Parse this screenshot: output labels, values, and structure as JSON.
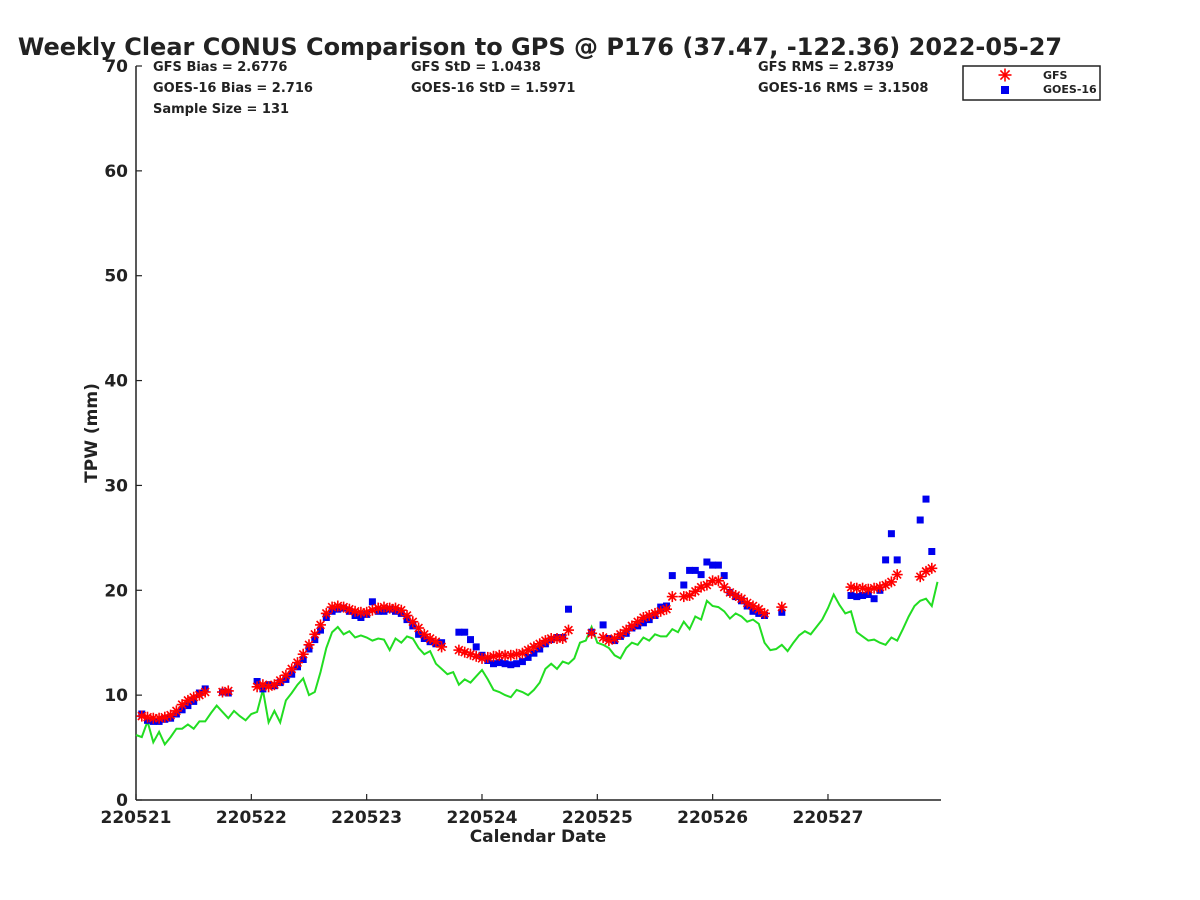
{
  "chart_data": {
    "type": "scatter",
    "title": "Weekly Clear CONUS Comparison to GPS @ P176 (37.47, -122.36) 2022-05-27",
    "xlabel": "Calendar Date",
    "ylabel": "TPW (mm)",
    "ylim": [
      0,
      70
    ],
    "xlim": [
      220521,
      220527.98
    ],
    "yticks": [
      "0",
      "10",
      "20",
      "30",
      "40",
      "50",
      "60",
      "70"
    ],
    "xticks": [
      "220521",
      "220522",
      "220523",
      "220524",
      "220525",
      "220526",
      "220527"
    ],
    "grid": false,
    "legend": {
      "position": "top-right",
      "entries": [
        "GFS",
        "GOES-16"
      ]
    },
    "stats": {
      "gfs_bias": "GFS Bias = 2.6776",
      "goes_bias": "GOES-16 Bias = 2.716",
      "sample_size": "Sample Size = 131",
      "gfs_std": "GFS StD = 1.0438",
      "goes_std": "GOES-16 StD = 1.5971",
      "gfs_rms": "GFS RMS = 2.8739",
      "goes_rms": "GOES-16 RMS = 3.1508"
    },
    "colors": {
      "gfs": "#ff0000",
      "goes": "#0000ee",
      "gps": "#22dd22"
    },
    "series": [
      {
        "name": "GFS",
        "marker": "asterisk",
        "x": [
          220521.05,
          220521.1,
          220521.15,
          220521.2,
          220521.25,
          220521.3,
          220521.35,
          220521.4,
          220521.45,
          220521.5,
          220521.55,
          220521.6,
          220521.75,
          220521.8,
          220522.05,
          220522.1,
          220522.15,
          220522.2,
          220522.25,
          220522.3,
          220522.35,
          220522.4,
          220522.45,
          220522.5,
          220522.55,
          220522.6,
          220522.65,
          220522.7,
          220522.75,
          220522.8,
          220522.85,
          220522.9,
          220522.95,
          220523.0,
          220523.05,
          220523.1,
          220523.15,
          220523.2,
          220523.25,
          220523.3,
          220523.35,
          220523.4,
          220523.45,
          220523.5,
          220523.55,
          220523.6,
          220523.65,
          220523.8,
          220523.85,
          220523.9,
          220523.95,
          220524.0,
          220524.05,
          220524.1,
          220524.15,
          220524.2,
          220524.25,
          220524.3,
          220524.35,
          220524.4,
          220524.45,
          220524.5,
          220524.55,
          220524.6,
          220524.65,
          220524.7,
          220524.75,
          220524.95,
          220525.05,
          220525.1,
          220525.15,
          220525.2,
          220525.25,
          220525.3,
          220525.35,
          220525.4,
          220525.45,
          220525.5,
          220525.55,
          220525.6,
          220525.65,
          220525.75,
          220525.8,
          220525.85,
          220525.9,
          220525.95,
          220526.0,
          220526.05,
          220526.1,
          220526.15,
          220526.2,
          220526.25,
          220526.3,
          220526.35,
          220526.4,
          220526.45,
          220526.6,
          220527.2,
          220527.25,
          220527.3,
          220527.35,
          220527.4,
          220527.45,
          220527.5,
          220527.55,
          220527.6,
          220527.8,
          220527.85,
          220527.9
        ],
        "y": [
          8.0,
          7.9,
          7.8,
          7.8,
          7.9,
          8.1,
          8.5,
          9.1,
          9.5,
          9.8,
          10.0,
          10.3,
          10.3,
          10.4,
          10.8,
          11.0,
          10.8,
          11.0,
          11.4,
          11.9,
          12.5,
          13.1,
          13.9,
          14.8,
          15.8,
          16.7,
          17.8,
          18.4,
          18.5,
          18.4,
          18.2,
          18.0,
          17.9,
          17.9,
          18.1,
          18.3,
          18.4,
          18.3,
          18.3,
          18.1,
          17.6,
          17.0,
          16.4,
          15.8,
          15.4,
          15.1,
          14.6,
          14.3,
          14.1,
          13.9,
          13.7,
          13.5,
          13.6,
          13.7,
          13.8,
          13.8,
          13.8,
          13.9,
          14.0,
          14.3,
          14.6,
          14.9,
          15.2,
          15.4,
          15.4,
          15.4,
          16.2,
          15.9,
          15.5,
          15.2,
          15.4,
          15.8,
          16.2,
          16.6,
          17.0,
          17.4,
          17.6,
          17.8,
          18.0,
          18.2,
          19.4,
          19.4,
          19.5,
          19.9,
          20.3,
          20.5,
          20.9,
          20.9,
          20.3,
          19.8,
          19.5,
          19.2,
          18.8,
          18.5,
          18.2,
          17.8,
          18.4,
          20.3,
          20.2,
          20.2,
          20.1,
          20.2,
          20.3,
          20.5,
          20.8,
          21.5,
          21.3,
          21.8,
          22.1
        ]
      },
      {
        "name": "GOES-16",
        "marker": "square",
        "x": [
          220521.05,
          220521.1,
          220521.15,
          220521.2,
          220521.25,
          220521.3,
          220521.35,
          220521.4,
          220521.45,
          220521.5,
          220521.55,
          220521.6,
          220521.75,
          220521.8,
          220522.05,
          220522.1,
          220522.15,
          220522.2,
          220522.25,
          220522.3,
          220522.35,
          220522.4,
          220522.45,
          220522.5,
          220522.55,
          220522.6,
          220522.65,
          220522.7,
          220522.75,
          220522.8,
          220522.85,
          220522.9,
          220522.95,
          220523.0,
          220523.05,
          220523.1,
          220523.15,
          220523.2,
          220523.25,
          220523.3,
          220523.35,
          220523.4,
          220523.45,
          220523.5,
          220523.55,
          220523.6,
          220523.65,
          220523.8,
          220523.85,
          220523.9,
          220523.95,
          220524.0,
          220524.05,
          220524.1,
          220524.15,
          220524.2,
          220524.25,
          220524.3,
          220524.35,
          220524.4,
          220524.45,
          220524.5,
          220524.55,
          220524.6,
          220524.65,
          220524.7,
          220524.75,
          220524.95,
          220525.05,
          220525.1,
          220525.15,
          220525.2,
          220525.25,
          220525.3,
          220525.35,
          220525.4,
          220525.45,
          220525.5,
          220525.55,
          220525.6,
          220525.65,
          220525.75,
          220525.8,
          220525.85,
          220525.9,
          220525.95,
          220526.0,
          220526.05,
          220526.1,
          220526.15,
          220526.2,
          220526.25,
          220526.3,
          220526.35,
          220526.4,
          220526.45,
          220526.6,
          220527.2,
          220527.25,
          220527.3,
          220527.35,
          220527.4,
          220527.45,
          220527.5,
          220527.55,
          220527.6,
          220527.8,
          220527.85,
          220527.9
        ],
        "y": [
          8.2,
          7.6,
          7.5,
          7.5,
          7.7,
          7.8,
          8.2,
          8.6,
          9.0,
          9.4,
          10.2,
          10.6,
          10.3,
          10.2,
          11.3,
          10.6,
          11.0,
          10.9,
          11.2,
          11.5,
          12.0,
          12.7,
          13.4,
          14.4,
          15.3,
          16.2,
          17.4,
          18.0,
          18.2,
          18.3,
          18.0,
          17.6,
          17.4,
          17.7,
          18.9,
          18.0,
          18.0,
          18.2,
          18.0,
          17.8,
          17.2,
          16.6,
          15.8,
          15.4,
          15.1,
          14.9,
          15.0,
          16.0,
          16.0,
          15.3,
          14.6,
          13.8,
          13.3,
          13.0,
          13.1,
          13.0,
          12.9,
          13.0,
          13.2,
          13.6,
          14.0,
          14.4,
          14.9,
          15.3,
          15.5,
          15.5,
          18.2,
          16.0,
          16.7,
          15.4,
          15.2,
          15.6,
          15.9,
          16.4,
          16.6,
          16.9,
          17.2,
          17.6,
          18.4,
          18.5,
          21.4,
          20.5,
          21.9,
          21.9,
          21.5,
          22.7,
          22.4,
          22.4,
          21.4,
          19.8,
          19.4,
          19.0,
          18.5,
          18.0,
          17.8,
          17.6,
          17.9,
          19.5,
          19.4,
          19.5,
          19.6,
          19.2,
          20.0,
          22.9,
          25.4,
          22.9,
          26.7,
          28.7,
          23.7
        ]
      },
      {
        "name": "GPS",
        "marker": "line",
        "x": [
          220521.0,
          220521.05,
          220521.1,
          220521.15,
          220521.2,
          220521.25,
          220521.3,
          220521.35,
          220521.4,
          220521.45,
          220521.5,
          220521.55,
          220521.6,
          220521.65,
          220521.7,
          220521.75,
          220521.8,
          220521.85,
          220521.9,
          220521.95,
          220522.0,
          220522.05,
          220522.1,
          220522.15,
          220522.2,
          220522.25,
          220522.3,
          220522.35,
          220522.4,
          220522.45,
          220522.5,
          220522.55,
          220522.6,
          220522.65,
          220522.7,
          220522.75,
          220522.8,
          220522.85,
          220522.9,
          220522.95,
          220523.0,
          220523.05,
          220523.1,
          220523.15,
          220523.2,
          220523.25,
          220523.3,
          220523.35,
          220523.4,
          220523.45,
          220523.5,
          220523.55,
          220523.6,
          220523.65,
          220523.7,
          220523.75,
          220523.8,
          220523.85,
          220523.9,
          220523.95,
          220524.0,
          220524.05,
          220524.1,
          220524.15,
          220524.2,
          220524.25,
          220524.3,
          220524.35,
          220524.4,
          220524.45,
          220524.5,
          220524.55,
          220524.6,
          220524.65,
          220524.7,
          220524.75,
          220524.8,
          220524.85,
          220524.9,
          220524.95,
          220525.0,
          220525.05,
          220525.1,
          220525.15,
          220525.2,
          220525.25,
          220525.3,
          220525.35,
          220525.4,
          220525.45,
          220525.5,
          220525.55,
          220525.6,
          220525.65,
          220525.7,
          220525.75,
          220525.8,
          220525.85,
          220525.9,
          220525.95,
          220526.0,
          220526.05,
          220526.1,
          220526.15,
          220526.2,
          220526.25,
          220526.3,
          220526.35,
          220526.4,
          220526.45,
          220526.5,
          220526.55,
          220526.6,
          220526.65,
          220526.7,
          220526.75,
          220526.8,
          220526.85,
          220526.9,
          220526.95,
          220527.0,
          220527.05,
          220527.1,
          220527.15,
          220527.2,
          220527.25,
          220527.3,
          220527.35,
          220527.4,
          220527.45,
          220527.5,
          220527.55,
          220527.6,
          220527.65,
          220527.7,
          220527.75,
          220527.8,
          220527.85,
          220527.9,
          220527.95
        ],
        "y": [
          6.2,
          6.0,
          7.5,
          5.5,
          6.5,
          5.3,
          6.0,
          6.8,
          6.8,
          7.2,
          6.8,
          7.5,
          7.5,
          8.3,
          9.0,
          8.4,
          7.8,
          8.5,
          8.0,
          7.6,
          8.2,
          8.4,
          10.5,
          7.4,
          8.5,
          7.4,
          9.5,
          10.2,
          11.0,
          11.6,
          10.0,
          10.3,
          12.2,
          14.5,
          16.0,
          16.5,
          15.8,
          16.1,
          15.5,
          15.7,
          15.5,
          15.2,
          15.4,
          15.3,
          14.3,
          15.4,
          15.0,
          15.6,
          15.4,
          14.5,
          13.9,
          14.2,
          13.0,
          12.5,
          12.0,
          12.2,
          11.0,
          11.5,
          11.2,
          11.8,
          12.4,
          11.5,
          10.5,
          10.3,
          10.0,
          9.8,
          10.5,
          10.3,
          10.0,
          10.5,
          11.2,
          12.5,
          13.0,
          12.5,
          13.2,
          13.0,
          13.5,
          15.0,
          15.2,
          16.5,
          15.0,
          14.8,
          14.5,
          13.8,
          13.5,
          14.5,
          15.0,
          14.8,
          15.5,
          15.2,
          15.8,
          15.6,
          15.6,
          16.3,
          16.0,
          17.0,
          16.3,
          17.5,
          17.2,
          19.0,
          18.5,
          18.4,
          18.0,
          17.3,
          17.8,
          17.5,
          17.0,
          17.2,
          16.8,
          15.0,
          14.3,
          14.4,
          14.8,
          14.2,
          15.0,
          15.7,
          16.1,
          15.8,
          16.5,
          17.2,
          18.3,
          19.6,
          18.6,
          17.8,
          18.0,
          16.0,
          15.6,
          15.2,
          15.3,
          15.0,
          14.8,
          15.5,
          15.2,
          16.3,
          17.5,
          18.5,
          19.0,
          19.2,
          18.5,
          20.8
        ]
      }
    ]
  }
}
